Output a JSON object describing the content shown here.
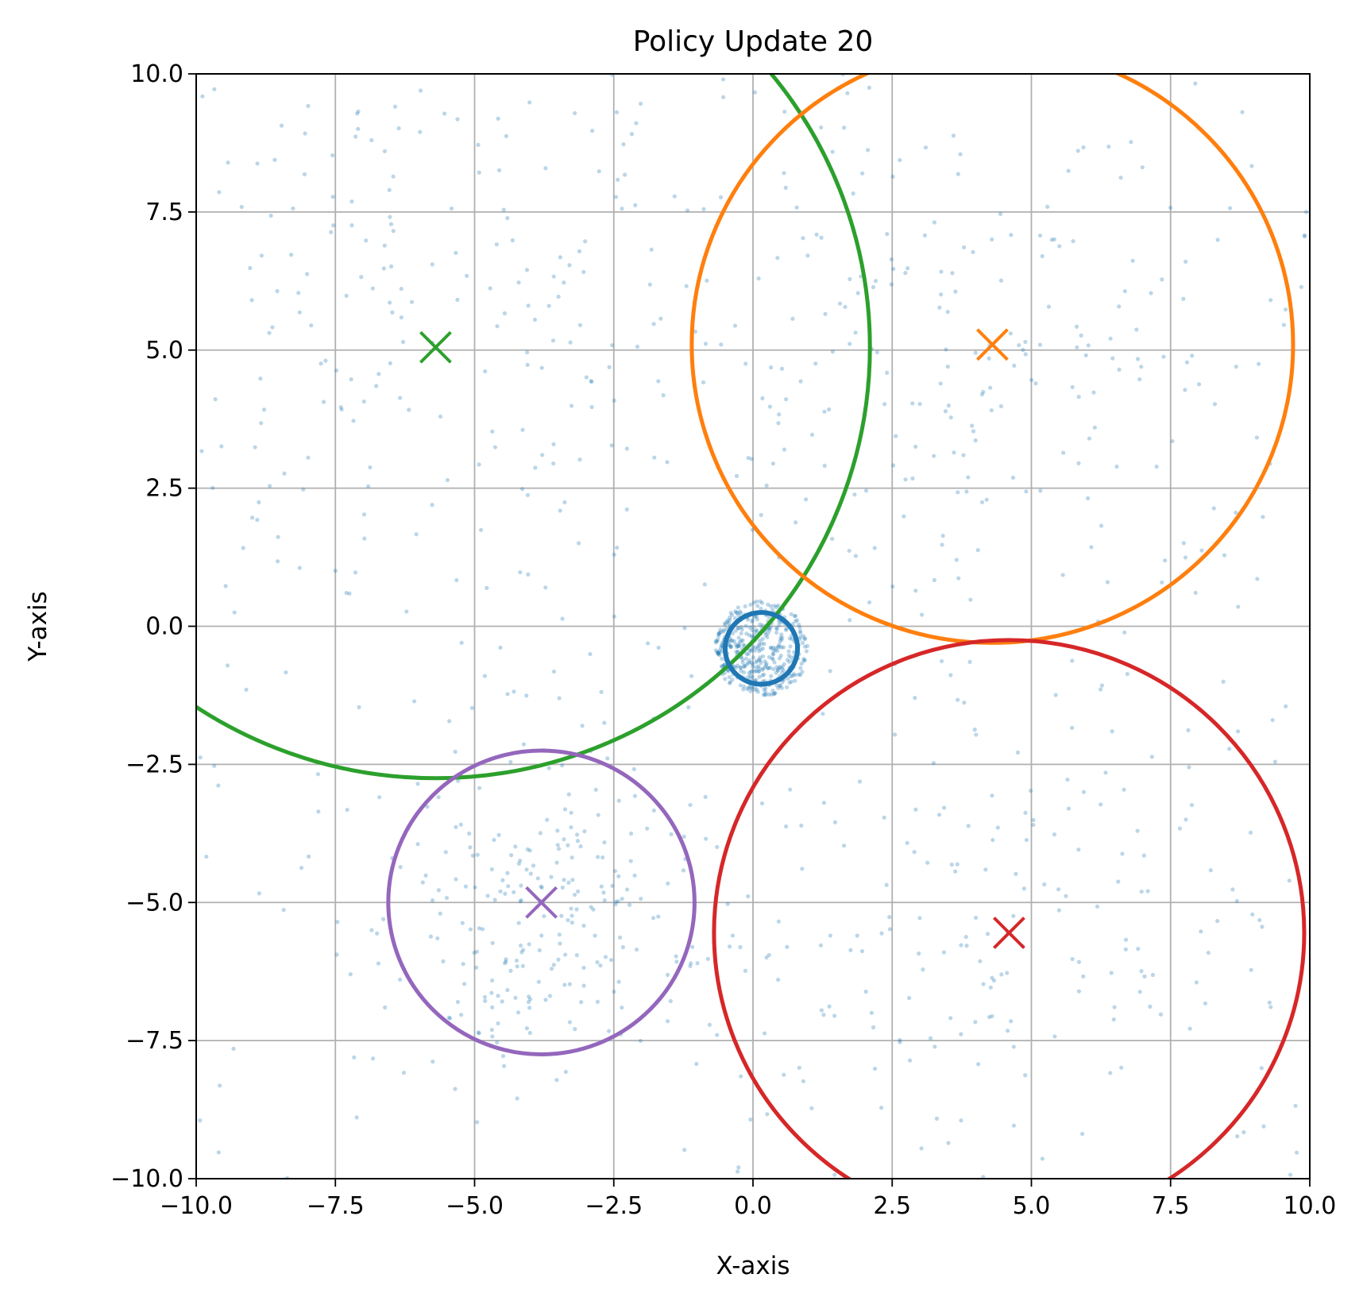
{
  "chart_data": {
    "type": "scatter",
    "title": "Policy Update 20",
    "xlabel": "X-axis",
    "ylabel": "Y-axis",
    "xlim": [
      -10,
      10
    ],
    "ylim": [
      -10,
      10
    ],
    "grid": true,
    "x_ticks": [
      -10.0,
      -7.5,
      -5.0,
      -2.5,
      0.0,
      2.5,
      5.0,
      7.5,
      10.0
    ],
    "y_ticks": [
      -10.0,
      -7.5,
      -5.0,
      -2.5,
      0.0,
      2.5,
      5.0,
      7.5,
      10.0
    ],
    "x_tick_labels": [
      "−10.0",
      "−7.5",
      "−5.0",
      "−2.5",
      "0.0",
      "2.5",
      "5.0",
      "7.5",
      "10.0"
    ],
    "y_tick_labels": [
      "−10.0",
      "−7.5",
      "−5.0",
      "−2.5",
      "0.0",
      "2.5",
      "5.0",
      "7.5",
      "10.0"
    ],
    "targets": [
      {
        "color": "#2ca02c",
        "center": [
          -5.7,
          5.05
        ],
        "radius": 7.8
      },
      {
        "color": "#ff7f0e",
        "center": [
          4.3,
          5.1
        ],
        "radius": 5.4
      },
      {
        "color": "#d62728",
        "center": [
          4.6,
          -5.55
        ],
        "radius": 5.3
      },
      {
        "color": "#9467bd",
        "center": [
          -3.8,
          -5.0
        ],
        "radius": 2.75
      }
    ],
    "policy": {
      "color": "#1f77b4",
      "center": [
        0.15,
        -0.4
      ],
      "radius": 0.65
    },
    "samples": {
      "color": "#1f77b4",
      "cluster": {
        "center": [
          0.15,
          -0.4
        ],
        "spread": 0.45,
        "count": 420
      },
      "target_scatter": [
        {
          "center": [
            -3.8,
            -5.0
          ],
          "spread": 1.4,
          "count": 220
        },
        {
          "center": [
            4.3,
            5.1
          ],
          "spread": 2.6,
          "count": 170
        },
        {
          "center": [
            4.6,
            -5.55
          ],
          "spread": 2.6,
          "count": 150
        },
        {
          "center": [
            -5.7,
            5.05
          ],
          "spread": 3.5,
          "count": 210
        }
      ]
    }
  }
}
